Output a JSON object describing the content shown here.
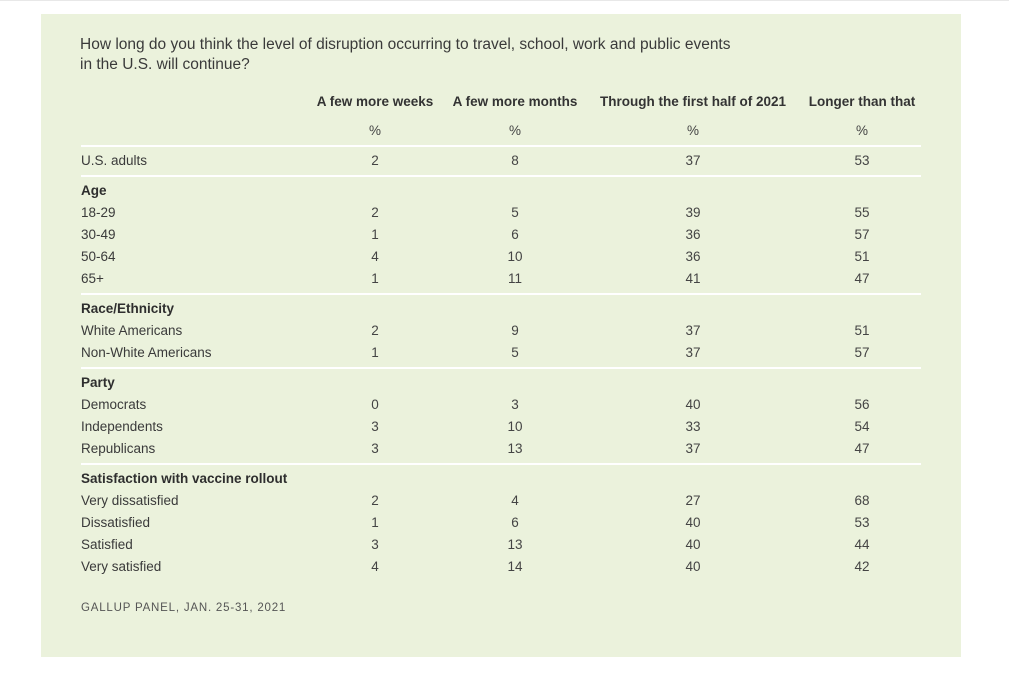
{
  "chart_data": {
    "type": "table",
    "title": "How long do you think the level of disruption occurring to travel, school, work and public events in the U.S. will continue?",
    "columns": [
      "A few more weeks",
      "A few more months",
      "Through the first half of 2021",
      "Longer than that"
    ],
    "unit_row": [
      "%",
      "%",
      "%",
      "%"
    ],
    "rows": [
      {
        "label": "U.S. adults",
        "values": [
          "2",
          "8",
          "37",
          "53"
        ]
      }
    ],
    "groups": [
      {
        "name": "Age",
        "rows": [
          {
            "label": "18-29",
            "values": [
              "2",
              "5",
              "39",
              "55"
            ]
          },
          {
            "label": "30-49",
            "values": [
              "1",
              "6",
              "36",
              "57"
            ]
          },
          {
            "label": "50-64",
            "values": [
              "4",
              "10",
              "36",
              "51"
            ]
          },
          {
            "label": "65+",
            "values": [
              "1",
              "11",
              "41",
              "47"
            ]
          }
        ]
      },
      {
        "name": "Race/Ethnicity",
        "rows": [
          {
            "label": "White Americans",
            "values": [
              "2",
              "9",
              "37",
              "51"
            ]
          },
          {
            "label": "Non-White Americans",
            "values": [
              "1",
              "5",
              "37",
              "57"
            ]
          }
        ]
      },
      {
        "name": "Party",
        "rows": [
          {
            "label": "Democrats",
            "values": [
              "0",
              "3",
              "40",
              "56"
            ]
          },
          {
            "label": "Independents",
            "values": [
              "3",
              "10",
              "33",
              "54"
            ]
          },
          {
            "label": "Republicans",
            "values": [
              "3",
              "13",
              "37",
              "47"
            ]
          }
        ]
      },
      {
        "name": "Satisfaction with vaccine rollout",
        "rows": [
          {
            "label": "Very dissatisfied",
            "values": [
              "2",
              "4",
              "27",
              "68"
            ]
          },
          {
            "label": "Dissatisfied",
            "values": [
              "1",
              "6",
              "40",
              "53"
            ]
          },
          {
            "label": "Satisfied",
            "values": [
              "3",
              "13",
              "40",
              "44"
            ]
          },
          {
            "label": "Very satisfied",
            "values": [
              "4",
              "14",
              "40",
              "42"
            ]
          }
        ]
      }
    ],
    "source": "GALLUP PANEL, JAN. 25-31, 2021"
  },
  "question_line1": "How long do you think the level of disruption occurring to travel, school, work and public events",
  "question_line2": "in the U.S. will continue?",
  "colors": {
    "card_bg": "#ebf2dc",
    "rule": "#ffffff",
    "text": "#333333"
  }
}
